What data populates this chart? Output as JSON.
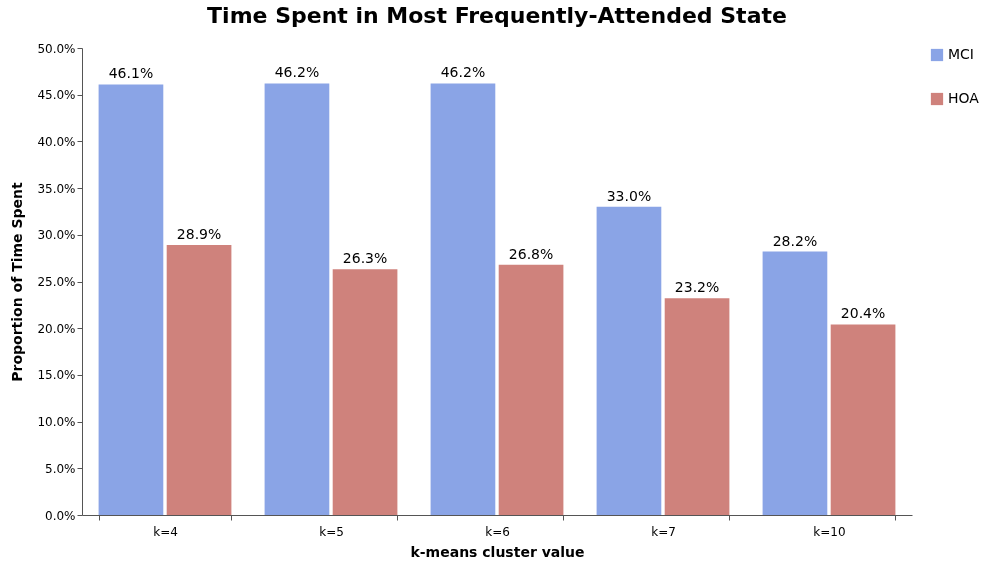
{
  "chart_data": {
    "type": "bar",
    "title": "Time Spent in Most Frequently-Attended State",
    "xlabel": "k-means cluster value",
    "ylabel": "Proportion of Time Spent",
    "categories": [
      "k=4",
      "k=5",
      "k=6",
      "k=7",
      "k=10"
    ],
    "series": [
      {
        "name": "MCI",
        "color": "#8aa4e6",
        "values": [
          46.1,
          46.2,
          46.2,
          33.0,
          28.2
        ],
        "value_labels": [
          "46.1%",
          "46.2%",
          "46.2%",
          "33.0%",
          "28.2%"
        ]
      },
      {
        "name": "HOA",
        "color": "#cf827c",
        "values": [
          28.9,
          26.3,
          26.8,
          23.2,
          20.4
        ],
        "value_labels": [
          "28.9%",
          "26.3%",
          "26.8%",
          "23.2%",
          "20.4%"
        ]
      }
    ],
    "ylim": [
      0,
      50
    ],
    "yticks": [
      {
        "value": 0,
        "label": "0.0%"
      },
      {
        "value": 5,
        "label": "5.0%"
      },
      {
        "value": 10,
        "label": "10.0%"
      },
      {
        "value": 15,
        "label": "15.0%"
      },
      {
        "value": 20,
        "label": "20.0%"
      },
      {
        "value": 25,
        "label": "25.0%"
      },
      {
        "value": 30,
        "label": "30.0%"
      },
      {
        "value": 35,
        "label": "35.0%"
      },
      {
        "value": 40,
        "label": "40.0%"
      },
      {
        "value": 45,
        "label": "45.0%"
      },
      {
        "value": 50,
        "label": "50.0%"
      }
    ],
    "legend": "right"
  }
}
